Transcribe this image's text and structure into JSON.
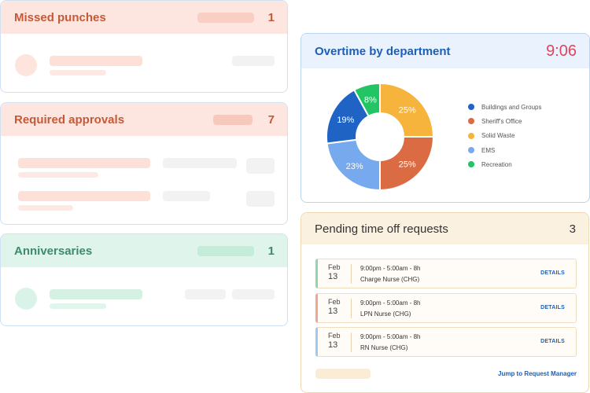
{
  "missed_punches": {
    "title": "Missed punches",
    "count": "1"
  },
  "required_approvals": {
    "title": "Required approvals",
    "count": "7"
  },
  "anniversaries": {
    "title": "Anniversaries",
    "count": "1"
  },
  "overtime": {
    "title": "Overtime by department",
    "clock": "9:06",
    "legend": [
      "Buildings and Groups",
      "Sheriff's Office",
      "Solid Waste",
      "EMS",
      "Recreation"
    ]
  },
  "chart_data": {
    "type": "pie",
    "title": "Overtime by department",
    "donut": true,
    "categories": [
      "Buildings and Groups",
      "Sheriff's Office",
      "Solid Waste",
      "EMS",
      "Recreation"
    ],
    "values": [
      19,
      25,
      25,
      23,
      8
    ],
    "labels": [
      "19%",
      "25%",
      "25%",
      "23%",
      "8%"
    ],
    "colors": [
      "#1f63c4",
      "#db6b43",
      "#f6b43c",
      "#77a9ee",
      "#22c463"
    ],
    "legend_position": "right"
  },
  "pending": {
    "title": "Pending time off requests",
    "count": "3",
    "requests": [
      {
        "month": "Feb",
        "day": "13",
        "time": "9:00pm - 5:00am - 8h",
        "role": "Charge Nurse (CHG)",
        "action": "DETAILS",
        "accent": "#8fd6ad"
      },
      {
        "month": "Feb",
        "day": "13",
        "time": "9:00pm - 5:00am - 8h",
        "role": "LPN Nurse (CHG)",
        "action": "DETAILS",
        "accent": "#eea98d"
      },
      {
        "month": "Feb",
        "day": "13",
        "time": "9:00pm - 5:00am - 8h",
        "role": "RN Nurse (CHG)",
        "action": "DETAILS",
        "accent": "#9fc9f1"
      }
    ],
    "link": "Jump to Request Manager"
  }
}
